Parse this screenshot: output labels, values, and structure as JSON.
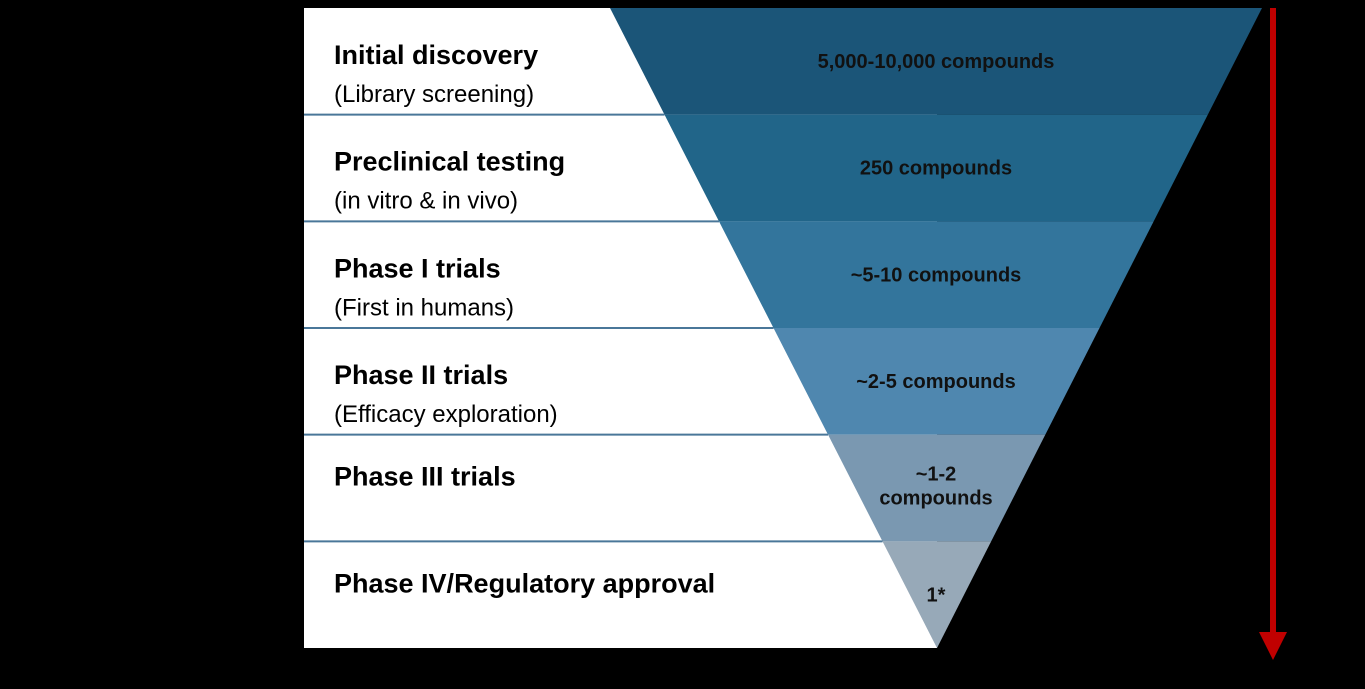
{
  "stages": [
    {
      "title": "Initial discovery",
      "subtitle": "(Library screening)",
      "count": [
        "5,000-10,000 compounds"
      ],
      "color": "#1b5578"
    },
    {
      "title": "Preclinical testing",
      "subtitle": "(in vitro & in vivo)",
      "count": [
        "250 compounds"
      ],
      "color": "#216589"
    },
    {
      "title": "Phase I trials",
      "subtitle": "(First in humans)",
      "count": [
        "~5-10 compounds"
      ],
      "color": "#33759c"
    },
    {
      "title": "Phase II trials",
      "subtitle": "(Efficacy exploration)",
      "count": [
        "~2-5 compounds"
      ],
      "color": "#4f87af"
    },
    {
      "title": "Phase III trials",
      "subtitle": "",
      "count": [
        "~1-2",
        "compounds"
      ],
      "color": "#7a98b1"
    },
    {
      "title": "Phase IV/Regulatory approval",
      "subtitle": "",
      "count": [
        "1*"
      ],
      "color": "#97a9b8"
    }
  ],
  "colors": {
    "background": "#000000",
    "panel": "#ffffff",
    "divider": "#4a7799",
    "arrow": "#c00000"
  }
}
